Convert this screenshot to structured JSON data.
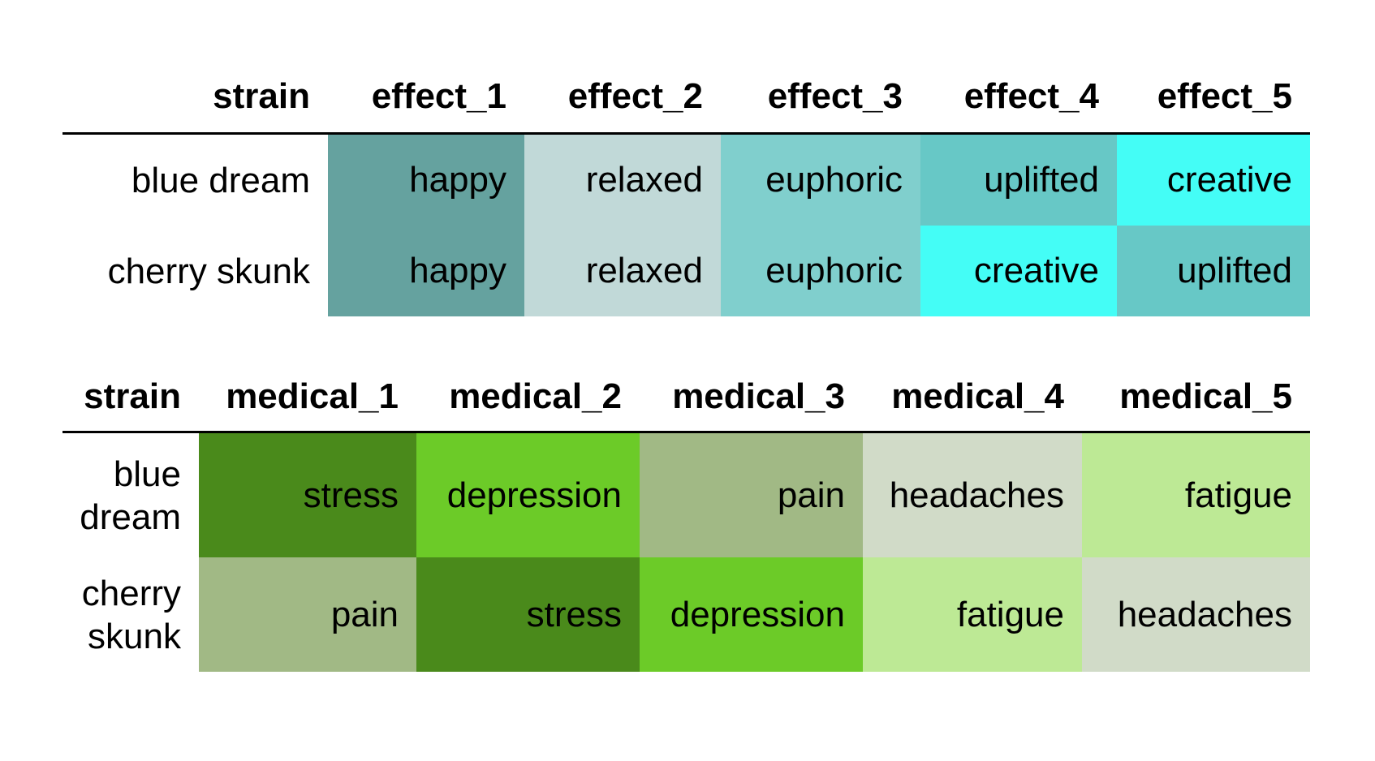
{
  "effects_table": {
    "columns": [
      "strain",
      "effect_1",
      "effect_2",
      "effect_3",
      "effect_4",
      "effect_5"
    ],
    "rows": [
      {
        "strain": "blue dream",
        "cells": [
          {
            "text": "happy",
            "color": "#65a29f"
          },
          {
            "text": "relaxed",
            "color": "#c1d9d8"
          },
          {
            "text": "euphoric",
            "color": "#80cfcd"
          },
          {
            "text": "uplifted",
            "color": "#67c8c6"
          },
          {
            "text": "creative",
            "color": "#44fdf6"
          }
        ]
      },
      {
        "strain": "cherry skunk",
        "cells": [
          {
            "text": "happy",
            "color": "#65a29f"
          },
          {
            "text": "relaxed",
            "color": "#c1d9d8"
          },
          {
            "text": "euphoric",
            "color": "#80cfcd"
          },
          {
            "text": "creative",
            "color": "#44fdf6"
          },
          {
            "text": "uplifted",
            "color": "#67c8c6"
          }
        ]
      }
    ]
  },
  "medical_table": {
    "columns": [
      "strain",
      "medical_1",
      "medical_2",
      "medical_3",
      "medical_4",
      "medical_5"
    ],
    "rows": [
      {
        "strain": "blue dream",
        "cells": [
          {
            "text": "stress",
            "color": "#4a8a1b"
          },
          {
            "text": "depression",
            "color": "#6ccb28"
          },
          {
            "text": "pain",
            "color": "#a1b985"
          },
          {
            "text": "headaches",
            "color": "#d1dbc8"
          },
          {
            "text": "fatigue",
            "color": "#bde995"
          }
        ]
      },
      {
        "strain": "cherry skunk",
        "cells": [
          {
            "text": "pain",
            "color": "#a1b985"
          },
          {
            "text": "stress",
            "color": "#4a8a1b"
          },
          {
            "text": "depression",
            "color": "#6ccb28"
          },
          {
            "text": "fatigue",
            "color": "#bde995"
          },
          {
            "text": "headaches",
            "color": "#d1dbc8"
          }
        ]
      }
    ]
  }
}
